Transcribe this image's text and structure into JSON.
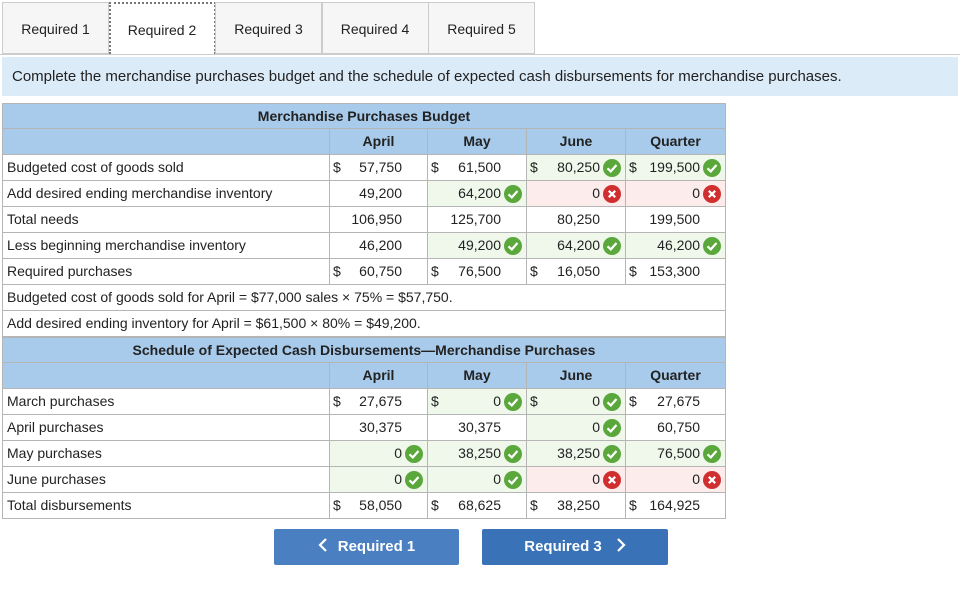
{
  "tabs": {
    "items": [
      "Required 1",
      "Required 2",
      "Required 3",
      "Required 4",
      "Required 5"
    ],
    "active": 1
  },
  "instruction": "Complete the merchandise purchases budget and the schedule of expected cash disbursements for merchandise purchases.",
  "budget": {
    "title": "Merchandise Purchases Budget",
    "columns": [
      "April",
      "May",
      "June",
      "Quarter"
    ],
    "rows": [
      {
        "label": "Budgeted cost of goods sold",
        "cells": [
          {
            "dollar": "$",
            "value": "57,750"
          },
          {
            "dollar": "$",
            "value": "61,500"
          },
          {
            "dollar": "$",
            "value": "80,250",
            "status": "correct"
          },
          {
            "dollar": "$",
            "value": "199,500",
            "status": "correct"
          }
        ]
      },
      {
        "label": "Add desired ending merchandise inventory",
        "cells": [
          {
            "value": "49,200"
          },
          {
            "value": "64,200",
            "status": "correct"
          },
          {
            "value": "0",
            "status": "incorrect"
          },
          {
            "value": "0",
            "status": "incorrect"
          }
        ]
      },
      {
        "label": "Total needs",
        "cells": [
          {
            "value": "106,950"
          },
          {
            "value": "125,700"
          },
          {
            "value": "80,250"
          },
          {
            "value": "199,500"
          }
        ]
      },
      {
        "label": "Less beginning merchandise inventory",
        "cells": [
          {
            "value": "46,200"
          },
          {
            "value": "49,200",
            "status": "correct"
          },
          {
            "value": "64,200",
            "status": "correct"
          },
          {
            "value": "46,200",
            "status": "correct"
          }
        ]
      },
      {
        "label": "Required purchases",
        "cells": [
          {
            "dollar": "$",
            "value": "60,750"
          },
          {
            "dollar": "$",
            "value": "76,500"
          },
          {
            "dollar": "$",
            "value": "16,050"
          },
          {
            "dollar": "$",
            "value": "153,300"
          }
        ]
      }
    ],
    "notes": [
      "Budgeted cost of goods sold for April = $77,000 sales × 75% = $57,750.",
      "Add desired ending inventory for April = $61,500 × 80% = $49,200."
    ]
  },
  "schedule": {
    "title": "Schedule of Expected Cash Disbursements—Merchandise Purchases",
    "columns": [
      "April",
      "May",
      "June",
      "Quarter"
    ],
    "rows": [
      {
        "label": "March purchases",
        "cells": [
          {
            "dollar": "$",
            "value": "27,675"
          },
          {
            "dollar": "$",
            "value": "0",
            "status": "correct"
          },
          {
            "dollar": "$",
            "value": "0",
            "status": "correct"
          },
          {
            "dollar": "$",
            "value": "27,675"
          }
        ]
      },
      {
        "label": "April purchases",
        "cells": [
          {
            "value": "30,375"
          },
          {
            "value": "30,375"
          },
          {
            "value": "0",
            "status": "correct"
          },
          {
            "value": "60,750"
          }
        ]
      },
      {
        "label": "May purchases",
        "cells": [
          {
            "value": "0",
            "status": "correct"
          },
          {
            "value": "38,250",
            "status": "correct"
          },
          {
            "value": "38,250",
            "status": "correct"
          },
          {
            "value": "76,500",
            "status": "correct"
          }
        ]
      },
      {
        "label": "June purchases",
        "cells": [
          {
            "value": "0",
            "status": "correct"
          },
          {
            "value": "0",
            "status": "correct"
          },
          {
            "value": "0",
            "status": "incorrect"
          },
          {
            "value": "0",
            "status": "incorrect"
          }
        ]
      },
      {
        "label": "Total disbursements",
        "cells": [
          {
            "dollar": "$",
            "value": "58,050"
          },
          {
            "dollar": "$",
            "value": "68,625"
          },
          {
            "dollar": "$",
            "value": "38,250"
          },
          {
            "dollar": "$",
            "value": "164,925"
          }
        ]
      }
    ]
  },
  "buttons": {
    "prev": "Required 1",
    "next": "Required 3"
  }
}
